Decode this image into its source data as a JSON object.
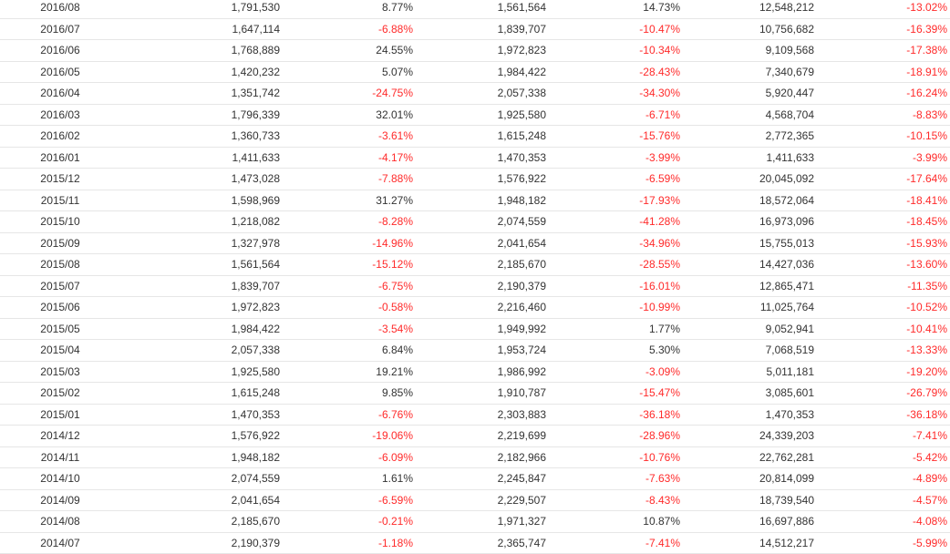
{
  "colors": {
    "negative": "#ff2a2a",
    "positive": "#333333",
    "divider": "#e6e6e6"
  },
  "rows": [
    {
      "month": "2016/08",
      "a": "1,791,530",
      "a_pct": "8.77%",
      "b": "1,561,564",
      "b_pct": "14.73%",
      "c": "12,548,212",
      "c_pct": "-13.02%"
    },
    {
      "month": "2016/07",
      "a": "1,647,114",
      "a_pct": "-6.88%",
      "b": "1,839,707",
      "b_pct": "-10.47%",
      "c": "10,756,682",
      "c_pct": "-16.39%"
    },
    {
      "month": "2016/06",
      "a": "1,768,889",
      "a_pct": "24.55%",
      "b": "1,972,823",
      "b_pct": "-10.34%",
      "c": "9,109,568",
      "c_pct": "-17.38%"
    },
    {
      "month": "2016/05",
      "a": "1,420,232",
      "a_pct": "5.07%",
      "b": "1,984,422",
      "b_pct": "-28.43%",
      "c": "7,340,679",
      "c_pct": "-18.91%"
    },
    {
      "month": "2016/04",
      "a": "1,351,742",
      "a_pct": "-24.75%",
      "b": "2,057,338",
      "b_pct": "-34.30%",
      "c": "5,920,447",
      "c_pct": "-16.24%"
    },
    {
      "month": "2016/03",
      "a": "1,796,339",
      "a_pct": "32.01%",
      "b": "1,925,580",
      "b_pct": "-6.71%",
      "c": "4,568,704",
      "c_pct": "-8.83%"
    },
    {
      "month": "2016/02",
      "a": "1,360,733",
      "a_pct": "-3.61%",
      "b": "1,615,248",
      "b_pct": "-15.76%",
      "c": "2,772,365",
      "c_pct": "-10.15%"
    },
    {
      "month": "2016/01",
      "a": "1,411,633",
      "a_pct": "-4.17%",
      "b": "1,470,353",
      "b_pct": "-3.99%",
      "c": "1,411,633",
      "c_pct": "-3.99%"
    },
    {
      "month": "2015/12",
      "a": "1,473,028",
      "a_pct": "-7.88%",
      "b": "1,576,922",
      "b_pct": "-6.59%",
      "c": "20,045,092",
      "c_pct": "-17.64%"
    },
    {
      "month": "2015/11",
      "a": "1,598,969",
      "a_pct": "31.27%",
      "b": "1,948,182",
      "b_pct": "-17.93%",
      "c": "18,572,064",
      "c_pct": "-18.41%"
    },
    {
      "month": "2015/10",
      "a": "1,218,082",
      "a_pct": "-8.28%",
      "b": "2,074,559",
      "b_pct": "-41.28%",
      "c": "16,973,096",
      "c_pct": "-18.45%"
    },
    {
      "month": "2015/09",
      "a": "1,327,978",
      "a_pct": "-14.96%",
      "b": "2,041,654",
      "b_pct": "-34.96%",
      "c": "15,755,013",
      "c_pct": "-15.93%"
    },
    {
      "month": "2015/08",
      "a": "1,561,564",
      "a_pct": "-15.12%",
      "b": "2,185,670",
      "b_pct": "-28.55%",
      "c": "14,427,036",
      "c_pct": "-13.60%"
    },
    {
      "month": "2015/07",
      "a": "1,839,707",
      "a_pct": "-6.75%",
      "b": "2,190,379",
      "b_pct": "-16.01%",
      "c": "12,865,471",
      "c_pct": "-11.35%"
    },
    {
      "month": "2015/06",
      "a": "1,972,823",
      "a_pct": "-0.58%",
      "b": "2,216,460",
      "b_pct": "-10.99%",
      "c": "11,025,764",
      "c_pct": "-10.52%"
    },
    {
      "month": "2015/05",
      "a": "1,984,422",
      "a_pct": "-3.54%",
      "b": "1,949,992",
      "b_pct": "1.77%",
      "c": "9,052,941",
      "c_pct": "-10.41%"
    },
    {
      "month": "2015/04",
      "a": "2,057,338",
      "a_pct": "6.84%",
      "b": "1,953,724",
      "b_pct": "5.30%",
      "c": "7,068,519",
      "c_pct": "-13.33%"
    },
    {
      "month": "2015/03",
      "a": "1,925,580",
      "a_pct": "19.21%",
      "b": "1,986,992",
      "b_pct": "-3.09%",
      "c": "5,011,181",
      "c_pct": "-19.20%"
    },
    {
      "month": "2015/02",
      "a": "1,615,248",
      "a_pct": "9.85%",
      "b": "1,910,787",
      "b_pct": "-15.47%",
      "c": "3,085,601",
      "c_pct": "-26.79%"
    },
    {
      "month": "2015/01",
      "a": "1,470,353",
      "a_pct": "-6.76%",
      "b": "2,303,883",
      "b_pct": "-36.18%",
      "c": "1,470,353",
      "c_pct": "-36.18%"
    },
    {
      "month": "2014/12",
      "a": "1,576,922",
      "a_pct": "-19.06%",
      "b": "2,219,699",
      "b_pct": "-28.96%",
      "c": "24,339,203",
      "c_pct": "-7.41%"
    },
    {
      "month": "2014/11",
      "a": "1,948,182",
      "a_pct": "-6.09%",
      "b": "2,182,966",
      "b_pct": "-10.76%",
      "c": "22,762,281",
      "c_pct": "-5.42%"
    },
    {
      "month": "2014/10",
      "a": "2,074,559",
      "a_pct": "1.61%",
      "b": "2,245,847",
      "b_pct": "-7.63%",
      "c": "20,814,099",
      "c_pct": "-4.89%"
    },
    {
      "month": "2014/09",
      "a": "2,041,654",
      "a_pct": "-6.59%",
      "b": "2,229,507",
      "b_pct": "-8.43%",
      "c": "18,739,540",
      "c_pct": "-4.57%"
    },
    {
      "month": "2014/08",
      "a": "2,185,670",
      "a_pct": "-0.21%",
      "b": "1,971,327",
      "b_pct": "10.87%",
      "c": "16,697,886",
      "c_pct": "-4.08%"
    },
    {
      "month": "2014/07",
      "a": "2,190,379",
      "a_pct": "-1.18%",
      "b": "2,365,747",
      "b_pct": "-7.41%",
      "c": "14,512,217",
      "c_pct": "-5.99%"
    }
  ]
}
